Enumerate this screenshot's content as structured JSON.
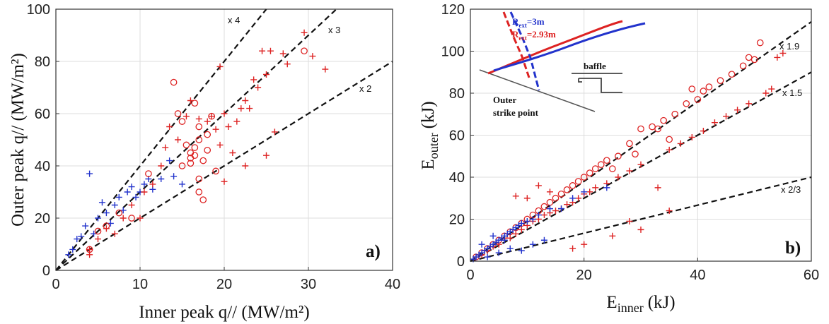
{
  "colors": {
    "red": "#dd2222",
    "blue": "#2233cc",
    "line": "#111111",
    "grid": "#dddddd"
  },
  "chart_data": [
    {
      "type": "scatter",
      "panel_label": "a)",
      "xlabel": "Inner peak q// (MW/m²)",
      "ylabel": "Outer peak q// (MW/m²)",
      "xlim": [
        0,
        40
      ],
      "ylim": [
        0,
        100
      ],
      "xticks": [
        "0",
        "10",
        "20",
        "30",
        "40"
      ],
      "yticks": [
        "0",
        "20",
        "40",
        "60",
        "80",
        "100"
      ],
      "grid": true,
      "lines": [
        {
          "label": "x 4",
          "slope": 4
        },
        {
          "label": "x 3",
          "slope": 3
        },
        {
          "label": "x 2",
          "slope": 2
        }
      ],
      "series": [
        {
          "marker": "plus",
          "color": "blue",
          "points": [
            [
              1.5,
              6
            ],
            [
              2,
              8
            ],
            [
              2.5,
              12
            ],
            [
              3,
              13
            ],
            [
              3.5,
              17
            ],
            [
              4,
              37
            ],
            [
              4.5,
              14
            ],
            [
              5,
              20
            ],
            [
              5.5,
              26
            ],
            [
              6,
              22
            ],
            [
              6.5,
              18
            ],
            [
              7,
              25
            ],
            [
              7.5,
              28
            ],
            [
              8,
              23
            ],
            [
              8.5,
              30
            ],
            [
              9,
              32
            ],
            [
              9.5,
              28
            ],
            [
              10,
              30
            ],
            [
              10.5,
              33
            ],
            [
              11,
              35
            ],
            [
              11.5,
              31
            ],
            [
              12.5,
              35
            ],
            [
              13.5,
              42
            ],
            [
              14,
              36
            ],
            [
              15,
              33
            ]
          ]
        },
        {
          "marker": "circle",
          "color": "red",
          "points": [
            [
              4,
              8
            ],
            [
              5,
              15
            ],
            [
              6,
              17
            ],
            [
              7.5,
              22
            ],
            [
              9,
              20
            ],
            [
              11,
              37
            ],
            [
              14,
              72
            ],
            [
              14.5,
              60
            ],
            [
              15,
              57
            ],
            [
              15.5,
              48
            ],
            [
              16,
              45
            ],
            [
              16,
              43
            ],
            [
              16.5,
              44
            ],
            [
              16.5,
              47
            ],
            [
              17,
              50
            ],
            [
              17,
              55
            ],
            [
              17,
              35
            ],
            [
              17.5,
              42
            ],
            [
              18,
              46
            ],
            [
              18,
              52
            ],
            [
              17,
              30
            ],
            [
              19,
              38
            ],
            [
              16.5,
              64
            ],
            [
              15,
              40
            ],
            [
              18.5,
              59
            ],
            [
              29.5,
              84
            ],
            [
              17.5,
              27
            ],
            [
              16,
              41
            ]
          ]
        },
        {
          "marker": "plus",
          "color": "red",
          "points": [
            [
              4,
              6
            ],
            [
              4,
              8
            ],
            [
              5,
              12
            ],
            [
              6,
              16
            ],
            [
              7,
              14
            ],
            [
              8,
              20
            ],
            [
              9,
              25
            ],
            [
              10,
              20
            ],
            [
              10.5,
              30
            ],
            [
              11.5,
              33
            ],
            [
              12.5,
              40
            ],
            [
              13,
              47
            ],
            [
              13.5,
              55
            ],
            [
              14.5,
              50
            ],
            [
              15.5,
              59
            ],
            [
              16,
              65
            ],
            [
              17,
              58
            ],
            [
              18,
              57
            ],
            [
              18.5,
              59
            ],
            [
              19,
              54
            ],
            [
              19.5,
              48
            ],
            [
              19.5,
              78
            ],
            [
              20,
              60
            ],
            [
              20.5,
              55
            ],
            [
              21,
              45
            ],
            [
              21.5,
              57
            ],
            [
              22,
              62
            ],
            [
              22.5,
              65
            ],
            [
              22.5,
              40
            ],
            [
              23,
              62
            ],
            [
              23.5,
              73
            ],
            [
              24,
              70
            ],
            [
              24.5,
              84
            ],
            [
              25,
              75
            ],
            [
              25,
              44
            ],
            [
              25.5,
              84
            ],
            [
              26,
              53
            ],
            [
              27,
              83
            ],
            [
              27.5,
              79
            ],
            [
              29.5,
              91
            ],
            [
              30.5,
              82
            ],
            [
              32,
              77
            ],
            [
              20,
              34
            ]
          ]
        }
      ]
    },
    {
      "type": "scatter",
      "panel_label": "b)",
      "xlabel_main": "E",
      "xlabel_sub": "inner",
      "xlabel_unit": "(kJ)",
      "ylabel_main": "E",
      "ylabel_sub": "outer",
      "ylabel_unit": "(kJ)",
      "xlim": [
        0,
        60
      ],
      "ylim": [
        0,
        120
      ],
      "xticks": [
        "0",
        "20",
        "40",
        "60"
      ],
      "yticks": [
        "0",
        "20",
        "40",
        "60",
        "80",
        "100",
        "120"
      ],
      "grid": true,
      "lines": [
        {
          "label": "x 1.9",
          "slope": 1.9
        },
        {
          "label": "x 1.5",
          "slope": 1.5
        },
        {
          "label": "x 2/3",
          "slope": 0.6667
        }
      ],
      "series": [
        {
          "marker": "circle",
          "color": "red",
          "points": [
            [
              1,
              2
            ],
            [
              2,
              4
            ],
            [
              3,
              6
            ],
            [
              4,
              8
            ],
            [
              5,
              10
            ],
            [
              6,
              12
            ],
            [
              7,
              14
            ],
            [
              8,
              16
            ],
            [
              9,
              18
            ],
            [
              10,
              20
            ],
            [
              11,
              22
            ],
            [
              12,
              24
            ],
            [
              13,
              26
            ],
            [
              14,
              28
            ],
            [
              15,
              30
            ],
            [
              16,
              32
            ],
            [
              17,
              34
            ],
            [
              18,
              36
            ],
            [
              19,
              38
            ],
            [
              20,
              40
            ],
            [
              21,
              42
            ],
            [
              22,
              44
            ],
            [
              23,
              46
            ],
            [
              24,
              48
            ],
            [
              26,
              50
            ],
            [
              28,
              56
            ],
            [
              30,
              63
            ],
            [
              32,
              64
            ],
            [
              34,
              67
            ],
            [
              36,
              70
            ],
            [
              38,
              75
            ],
            [
              39,
              82
            ],
            [
              40,
              77
            ],
            [
              41,
              81
            ],
            [
              42,
              83
            ],
            [
              44,
              86
            ],
            [
              46,
              89
            ],
            [
              48,
              93
            ],
            [
              49,
              97
            ],
            [
              50,
              96
            ],
            [
              51,
              104
            ],
            [
              33,
              63
            ],
            [
              29,
              51
            ],
            [
              25,
              44
            ],
            [
              35,
              58
            ]
          ]
        },
        {
          "marker": "plus",
          "color": "red",
          "points": [
            [
              1,
              2
            ],
            [
              2,
              3
            ],
            [
              3,
              5
            ],
            [
              4,
              7
            ],
            [
              5,
              8
            ],
            [
              6,
              10
            ],
            [
              7,
              11
            ],
            [
              8,
              13
            ],
            [
              9,
              15
            ],
            [
              10,
              17
            ],
            [
              11,
              19
            ],
            [
              12,
              20
            ],
            [
              13,
              22
            ],
            [
              14,
              23
            ],
            [
              15,
              24
            ],
            [
              16,
              25
            ],
            [
              17,
              27
            ],
            [
              18,
              28
            ],
            [
              19,
              30
            ],
            [
              20,
              32
            ],
            [
              21,
              33
            ],
            [
              22,
              35
            ],
            [
              24,
              37
            ],
            [
              26,
              40
            ],
            [
              28,
              43
            ],
            [
              30,
              46
            ],
            [
              33,
              35
            ],
            [
              35,
              53
            ],
            [
              37,
              56
            ],
            [
              39,
              59
            ],
            [
              41,
              62
            ],
            [
              43,
              66
            ],
            [
              45,
              69
            ],
            [
              47,
              72
            ],
            [
              49,
              75
            ],
            [
              52,
              80
            ],
            [
              53,
              82
            ],
            [
              54,
              97
            ],
            [
              55,
              99
            ],
            [
              8,
              31
            ],
            [
              10,
              30
            ],
            [
              12,
              36
            ],
            [
              14,
              33
            ],
            [
              20,
              8
            ],
            [
              25,
              12
            ],
            [
              30,
              15
            ],
            [
              35,
              24
            ],
            [
              28,
              19
            ],
            [
              18,
              6
            ]
          ]
        },
        {
          "marker": "plus",
          "color": "blue",
          "points": [
            [
              0.5,
              1
            ],
            [
              1,
              2
            ],
            [
              1.5,
              3
            ],
            [
              2,
              4
            ],
            [
              2.5,
              5
            ],
            [
              3,
              6
            ],
            [
              3.5,
              7
            ],
            [
              4,
              8
            ],
            [
              4.5,
              9
            ],
            [
              5,
              10
            ],
            [
              5.5,
              11
            ],
            [
              6,
              12
            ],
            [
              6.5,
              13
            ],
            [
              7,
              14
            ],
            [
              7.5,
              15
            ],
            [
              8,
              16
            ],
            [
              8.5,
              17
            ],
            [
              9,
              18
            ],
            [
              10,
              19
            ],
            [
              11,
              20
            ],
            [
              12,
              22
            ],
            [
              14,
              25
            ],
            [
              3,
              2
            ],
            [
              5,
              4
            ],
            [
              7,
              6
            ],
            [
              9,
              5
            ],
            [
              11,
              8
            ],
            [
              13,
              10
            ],
            [
              16,
              25
            ],
            [
              18,
              30
            ],
            [
              20,
              33
            ],
            [
              24,
              35
            ],
            [
              2,
              8
            ],
            [
              4,
              12
            ],
            [
              6,
              10
            ]
          ]
        }
      ],
      "inset": {
        "legend": [
          {
            "main": "R",
            "sub": "ext",
            "value": "=3m",
            "color": "blue"
          },
          {
            "main": "R",
            "sub": "ext",
            "value": "=2.93m",
            "color": "red"
          }
        ],
        "baffle_label": "baffle",
        "strike_label_1": "Outer",
        "strike_label_2": "strike point"
      }
    }
  ]
}
